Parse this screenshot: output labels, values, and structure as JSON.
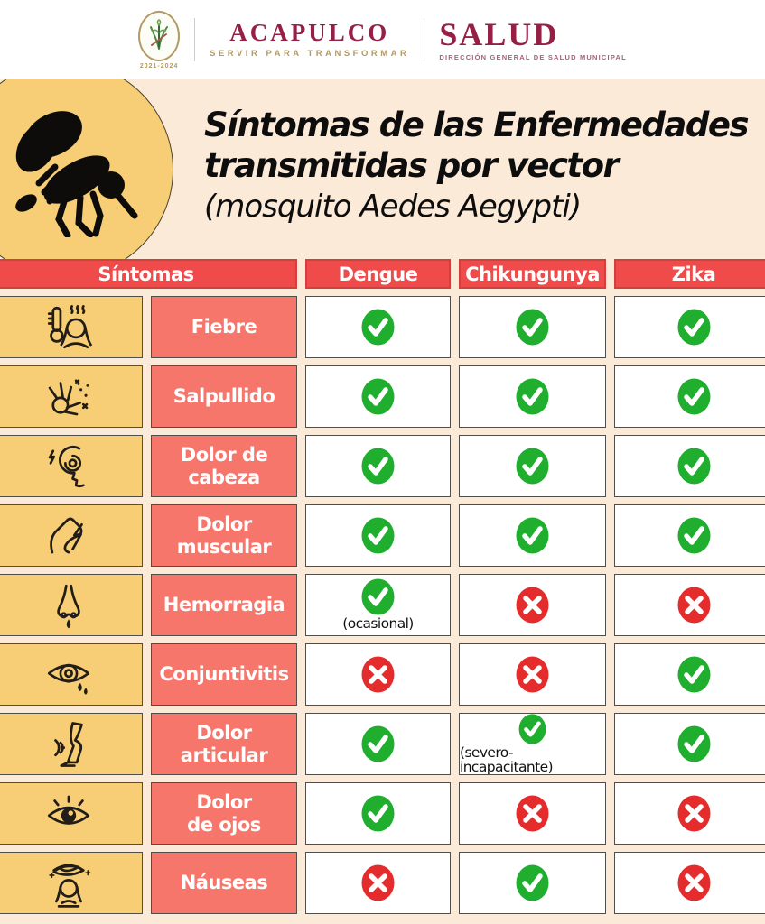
{
  "header": {
    "seal_years": "2021-2024",
    "brand": "ACAPULCO",
    "brand_tagline": "SERVIR PARA TRANSFORMAR",
    "dept": "SALUD",
    "dept_subtitle": "DIRECCIÓN GENERAL DE SALUD MUNICIPAL"
  },
  "title": {
    "line1": "Síntomas de las Enfermedades",
    "line2": "transmitidas por vector",
    "line3": "(mosquito Aedes Aegypti)"
  },
  "table": {
    "columns": [
      "Síntomas",
      "Dengue",
      "Chikungunya",
      "Zika"
    ],
    "rows": [
      {
        "icon": "fever-icon",
        "label": "Fiebre",
        "cells": [
          {
            "mark": "check"
          },
          {
            "mark": "check"
          },
          {
            "mark": "check"
          }
        ]
      },
      {
        "icon": "rash-hand-icon",
        "label": "Salpullido",
        "cells": [
          {
            "mark": "check"
          },
          {
            "mark": "check"
          },
          {
            "mark": "check"
          }
        ]
      },
      {
        "icon": "headache-icon",
        "label": "Dolor de\ncabeza",
        "cells": [
          {
            "mark": "check"
          },
          {
            "mark": "check"
          },
          {
            "mark": "check"
          }
        ]
      },
      {
        "icon": "muscle-pain-icon",
        "label": "Dolor\nmuscular",
        "cells": [
          {
            "mark": "check"
          },
          {
            "mark": "check"
          },
          {
            "mark": "check"
          }
        ]
      },
      {
        "icon": "nosebleed-icon",
        "label": "Hemorragia",
        "cells": [
          {
            "mark": "check",
            "note": "(ocasional)"
          },
          {
            "mark": "cross"
          },
          {
            "mark": "cross"
          }
        ]
      },
      {
        "icon": "conjunctivitis-icon",
        "label": "Conjuntivitis",
        "cells": [
          {
            "mark": "cross"
          },
          {
            "mark": "cross"
          },
          {
            "mark": "check"
          }
        ]
      },
      {
        "icon": "joint-pain-icon",
        "label": "Dolor\narticular",
        "cells": [
          {
            "mark": "check"
          },
          {
            "mark": "check",
            "note": "(severo-incapacitante)"
          },
          {
            "mark": "check"
          }
        ]
      },
      {
        "icon": "eye-pain-icon",
        "label": "Dolor\nde ojos",
        "cells": [
          {
            "mark": "check"
          },
          {
            "mark": "cross"
          },
          {
            "mark": "cross"
          }
        ]
      },
      {
        "icon": "nausea-icon",
        "label": "Náuseas",
        "cells": [
          {
            "mark": "cross"
          },
          {
            "mark": "check"
          },
          {
            "mark": "cross"
          }
        ]
      }
    ]
  },
  "colors": {
    "cream": "#fcead8",
    "circle_yellow": "#f7ce75",
    "header_red": "#f04b4b",
    "label_coral": "#f7766b",
    "check_green": "#1fae2d",
    "cross_red": "#e42c2c",
    "brand_maroon": "#962045",
    "brand_gold": "#b49a64"
  }
}
